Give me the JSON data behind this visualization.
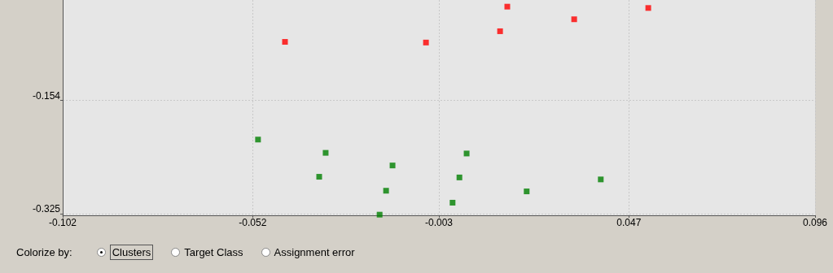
{
  "chart_data": {
    "type": "scatter",
    "marker": "square",
    "grid": true,
    "xlim": [
      -0.102,
      0.096
    ],
    "xticks": [
      -0.102,
      -0.052,
      -0.003,
      0.047,
      0.096
    ],
    "ylim": [
      -0.327,
      -0.003
    ],
    "yticks": [
      -0.325,
      -0.154
    ],
    "annotations": [
      "Colorize by:",
      "Clusters",
      "Target Class",
      "Assignment error"
    ],
    "series": [
      {
        "color": "#ff0000",
        "x": [
          -0.0435,
          -0.0064,
          0.0131,
          0.015,
          0.0326,
          0.0521
        ],
        "values": [
          -0.066,
          -0.067,
          -0.05,
          -0.013,
          -0.032,
          -0.015
        ]
      },
      {
        "color": "#008000",
        "x": [
          -0.0506,
          -0.0328,
          -0.0345,
          -0.0152,
          -0.0169,
          -0.0186,
          0.0043,
          0.0024,
          0.0006,
          0.0201,
          0.0396
        ],
        "values": [
          -0.213,
          -0.233,
          -0.269,
          -0.252,
          -0.29,
          -0.326,
          -0.234,
          -0.27,
          -0.308,
          -0.291,
          -0.273
        ]
      }
    ]
  }
}
